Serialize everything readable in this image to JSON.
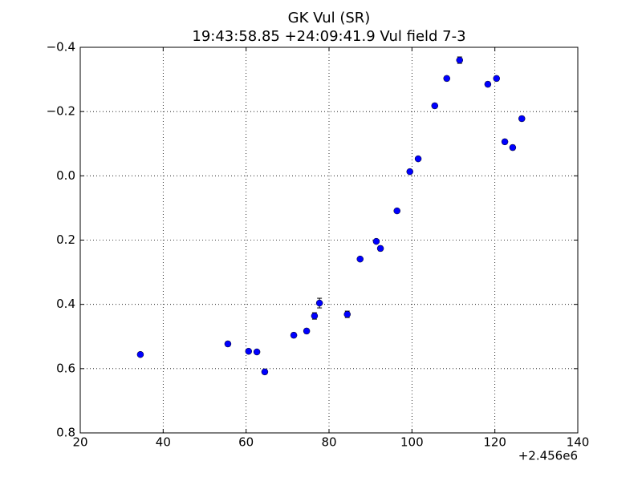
{
  "chart_data": {
    "type": "scatter",
    "title": "GK Vul (SR)",
    "subtitle": "19:43:58.85 +24:09:41.9 Vul field 7-3",
    "x_offset_label": "+2.456e6",
    "x": [
      34.5,
      55.6,
      60.6,
      62.6,
      64.5,
      71.5,
      74.6,
      76.5,
      77.7,
      84.4,
      87.5,
      91.4,
      92.4,
      96.4,
      99.5,
      101.5,
      105.5,
      108.4,
      111.5,
      118.3,
      120.4,
      122.4,
      124.3,
      126.5
    ],
    "values": [
      0.556,
      0.523,
      0.546,
      0.548,
      0.61,
      0.496,
      0.483,
      0.436,
      0.396,
      0.431,
      0.259,
      0.204,
      0.226,
      0.109,
      -0.013,
      -0.053,
      -0.218,
      -0.303,
      -0.36,
      -0.285,
      -0.303,
      -0.106,
      -0.088,
      -0.178
    ],
    "errors": [
      0.006,
      0.007,
      0.006,
      0.006,
      0.007,
      0.007,
      0.007,
      0.01,
      0.015,
      0.01,
      0.006,
      0.006,
      0.007,
      0.006,
      0.006,
      0.006,
      0.007,
      0.007,
      0.01,
      0.007,
      0.007,
      0.007,
      0.007,
      0.007
    ],
    "color": "#0000ff",
    "xlim": [
      20,
      140
    ],
    "xticks": [
      20,
      40,
      60,
      80,
      100,
      120,
      140
    ],
    "ylim": [
      -0.4,
      0.8
    ],
    "y_inverted": true,
    "yticks": [
      {
        "value": -0.4,
        "label": "−0.4"
      },
      {
        "value": -0.2,
        "label": "−0.2"
      },
      {
        "value": 0,
        "label": "0.0"
      },
      0.2,
      0.4,
      0.6,
      0.8
    ],
    "grid": true
  }
}
